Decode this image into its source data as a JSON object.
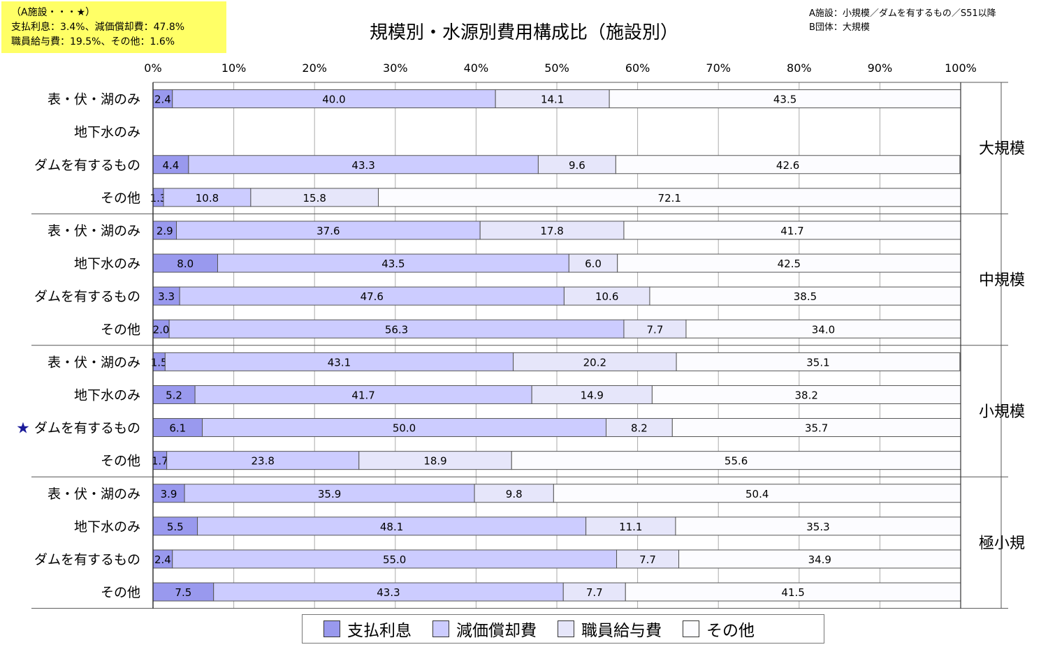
{
  "note": {
    "lines": [
      "（A施設・・・★）",
      "支払利息：3.4%、減価償却費：47.8%",
      "職員給与費：19.5%、その他：1.6%"
    ],
    "background": "#ffff66"
  },
  "info": {
    "lines": [
      "A施設：小規模／ダムを有するもの／S51以降",
      "B団体：大規模"
    ]
  },
  "marker": {
    "symbol": "★",
    "color": "#1a1a99",
    "group": 2,
    "row": 2
  },
  "chart_data": {
    "type": "bar",
    "orientation": "horizontal",
    "stacked": true,
    "title": "規模別・水源別費用構成比（施設別）",
    "x_ticks": [
      "0%",
      "10%",
      "20%",
      "30%",
      "40%",
      "50%",
      "60%",
      "70%",
      "80%",
      "90%",
      "100%"
    ],
    "xlim": [
      0,
      100
    ],
    "grid": true,
    "legend_position": "bottom",
    "series": [
      {
        "name": "支払利息",
        "color": "#9999ee"
      },
      {
        "name": "減価償却費",
        "color": "#ccccff"
      },
      {
        "name": "職員給与費",
        "color": "#e6e6fa"
      },
      {
        "name": "その他",
        "color": "#fcfcff"
      }
    ],
    "groups": [
      {
        "name": "大規模",
        "rows": [
          {
            "label": "表・伏・湖のみ",
            "values": [
              2.4,
              40.0,
              14.1,
              43.5
            ]
          },
          {
            "label": "地下水のみ",
            "values": null
          },
          {
            "label": "ダムを有するもの",
            "values": [
              4.4,
              43.3,
              9.6,
              42.6
            ]
          },
          {
            "label": "その他",
            "values": [
              1.3,
              10.8,
              15.8,
              72.1
            ]
          }
        ]
      },
      {
        "name": "中規模",
        "rows": [
          {
            "label": "表・伏・湖のみ",
            "values": [
              2.9,
              37.6,
              17.8,
              41.7
            ]
          },
          {
            "label": "地下水のみ",
            "values": [
              8.0,
              43.5,
              6.0,
              42.5
            ]
          },
          {
            "label": "ダムを有するもの",
            "values": [
              3.3,
              47.6,
              10.6,
              38.5
            ]
          },
          {
            "label": "その他",
            "values": [
              2.0,
              56.3,
              7.7,
              34.0
            ]
          }
        ]
      },
      {
        "name": "小規模",
        "rows": [
          {
            "label": "表・伏・湖のみ",
            "values": [
              1.5,
              43.1,
              20.2,
              35.1
            ]
          },
          {
            "label": "地下水のみ",
            "values": [
              5.2,
              41.7,
              14.9,
              38.2
            ]
          },
          {
            "label": "ダムを有するもの",
            "values": [
              6.1,
              50.0,
              8.2,
              35.7
            ]
          },
          {
            "label": "その他",
            "values": [
              1.7,
              23.8,
              18.9,
              55.6
            ]
          }
        ]
      },
      {
        "name": "極小規",
        "rows": [
          {
            "label": "表・伏・湖のみ",
            "values": [
              3.9,
              35.9,
              9.8,
              50.4
            ]
          },
          {
            "label": "地下水のみ",
            "values": [
              5.5,
              48.1,
              11.1,
              35.3
            ]
          },
          {
            "label": "ダムを有するもの",
            "values": [
              2.4,
              55.0,
              7.7,
              34.9
            ]
          },
          {
            "label": "その他",
            "values": [
              7.5,
              43.3,
              7.7,
              41.5
            ]
          }
        ]
      }
    ]
  }
}
